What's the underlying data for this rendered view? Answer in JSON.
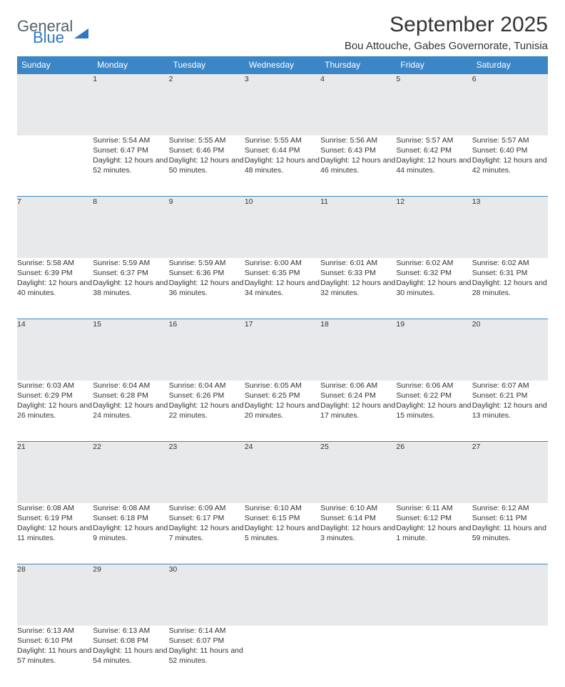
{
  "brand": {
    "part1": "General",
    "part2": "Blue"
  },
  "title": "September 2025",
  "location": "Bou Attouche, Gabes Governorate, Tunisia",
  "header_bg": "#3b86c7",
  "daybar_bg": "#e7e9eb",
  "accent_border": "#3b86c7",
  "days": [
    "Sunday",
    "Monday",
    "Tuesday",
    "Wednesday",
    "Thursday",
    "Friday",
    "Saturday"
  ],
  "weeks": [
    [
      null,
      {
        "n": "1",
        "sunrise": "5:54 AM",
        "sunset": "6:47 PM",
        "daylight": "12 hours and 52 minutes."
      },
      {
        "n": "2",
        "sunrise": "5:55 AM",
        "sunset": "6:46 PM",
        "daylight": "12 hours and 50 minutes."
      },
      {
        "n": "3",
        "sunrise": "5:55 AM",
        "sunset": "6:44 PM",
        "daylight": "12 hours and 48 minutes."
      },
      {
        "n": "4",
        "sunrise": "5:56 AM",
        "sunset": "6:43 PM",
        "daylight": "12 hours and 46 minutes."
      },
      {
        "n": "5",
        "sunrise": "5:57 AM",
        "sunset": "6:42 PM",
        "daylight": "12 hours and 44 minutes."
      },
      {
        "n": "6",
        "sunrise": "5:57 AM",
        "sunset": "6:40 PM",
        "daylight": "12 hours and 42 minutes."
      }
    ],
    [
      {
        "n": "7",
        "sunrise": "5:58 AM",
        "sunset": "6:39 PM",
        "daylight": "12 hours and 40 minutes."
      },
      {
        "n": "8",
        "sunrise": "5:59 AM",
        "sunset": "6:37 PM",
        "daylight": "12 hours and 38 minutes."
      },
      {
        "n": "9",
        "sunrise": "5:59 AM",
        "sunset": "6:36 PM",
        "daylight": "12 hours and 36 minutes."
      },
      {
        "n": "10",
        "sunrise": "6:00 AM",
        "sunset": "6:35 PM",
        "daylight": "12 hours and 34 minutes."
      },
      {
        "n": "11",
        "sunrise": "6:01 AM",
        "sunset": "6:33 PM",
        "daylight": "12 hours and 32 minutes."
      },
      {
        "n": "12",
        "sunrise": "6:02 AM",
        "sunset": "6:32 PM",
        "daylight": "12 hours and 30 minutes."
      },
      {
        "n": "13",
        "sunrise": "6:02 AM",
        "sunset": "6:31 PM",
        "daylight": "12 hours and 28 minutes."
      }
    ],
    [
      {
        "n": "14",
        "sunrise": "6:03 AM",
        "sunset": "6:29 PM",
        "daylight": "12 hours and 26 minutes."
      },
      {
        "n": "15",
        "sunrise": "6:04 AM",
        "sunset": "6:28 PM",
        "daylight": "12 hours and 24 minutes."
      },
      {
        "n": "16",
        "sunrise": "6:04 AM",
        "sunset": "6:26 PM",
        "daylight": "12 hours and 22 minutes."
      },
      {
        "n": "17",
        "sunrise": "6:05 AM",
        "sunset": "6:25 PM",
        "daylight": "12 hours and 20 minutes."
      },
      {
        "n": "18",
        "sunrise": "6:06 AM",
        "sunset": "6:24 PM",
        "daylight": "12 hours and 17 minutes."
      },
      {
        "n": "19",
        "sunrise": "6:06 AM",
        "sunset": "6:22 PM",
        "daylight": "12 hours and 15 minutes."
      },
      {
        "n": "20",
        "sunrise": "6:07 AM",
        "sunset": "6:21 PM",
        "daylight": "12 hours and 13 minutes."
      }
    ],
    [
      {
        "n": "21",
        "sunrise": "6:08 AM",
        "sunset": "6:19 PM",
        "daylight": "12 hours and 11 minutes."
      },
      {
        "n": "22",
        "sunrise": "6:08 AM",
        "sunset": "6:18 PM",
        "daylight": "12 hours and 9 minutes."
      },
      {
        "n": "23",
        "sunrise": "6:09 AM",
        "sunset": "6:17 PM",
        "daylight": "12 hours and 7 minutes."
      },
      {
        "n": "24",
        "sunrise": "6:10 AM",
        "sunset": "6:15 PM",
        "daylight": "12 hours and 5 minutes."
      },
      {
        "n": "25",
        "sunrise": "6:10 AM",
        "sunset": "6:14 PM",
        "daylight": "12 hours and 3 minutes."
      },
      {
        "n": "26",
        "sunrise": "6:11 AM",
        "sunset": "6:12 PM",
        "daylight": "12 hours and 1 minute."
      },
      {
        "n": "27",
        "sunrise": "6:12 AM",
        "sunset": "6:11 PM",
        "daylight": "11 hours and 59 minutes."
      }
    ],
    [
      {
        "n": "28",
        "sunrise": "6:13 AM",
        "sunset": "6:10 PM",
        "daylight": "11 hours and 57 minutes."
      },
      {
        "n": "29",
        "sunrise": "6:13 AM",
        "sunset": "6:08 PM",
        "daylight": "11 hours and 54 minutes."
      },
      {
        "n": "30",
        "sunrise": "6:14 AM",
        "sunset": "6:07 PM",
        "daylight": "11 hours and 52 minutes."
      },
      null,
      null,
      null,
      null
    ]
  ],
  "labels": {
    "sunrise": "Sunrise:",
    "sunset": "Sunset:",
    "daylight": "Daylight:"
  }
}
